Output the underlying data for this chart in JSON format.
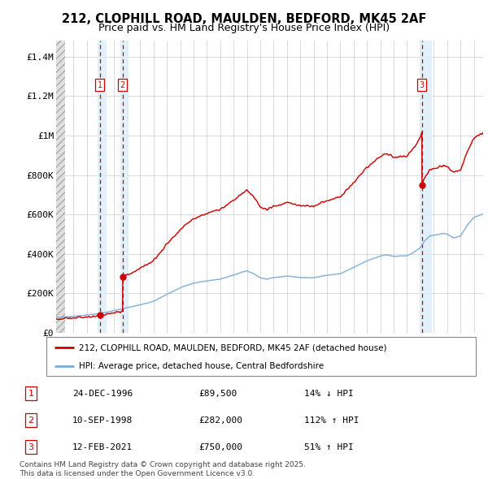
{
  "title": "212, CLOPHILL ROAD, MAULDEN, BEDFORD, MK45 2AF",
  "subtitle": "Price paid vs. HM Land Registry's House Price Index (HPI)",
  "ylabel_ticks": [
    "£0",
    "£200K",
    "£400K",
    "£600K",
    "£800K",
    "£1M",
    "£1.2M",
    "£1.4M"
  ],
  "ytick_vals": [
    0,
    200000,
    400000,
    600000,
    800000,
    1000000,
    1200000,
    1400000
  ],
  "ylim": [
    0,
    1480000
  ],
  "xlim_start": 1993.7,
  "xlim_end": 2025.7,
  "sale_dates": [
    1996.98,
    1998.69,
    2021.12
  ],
  "sale_prices": [
    89500,
    282000,
    750000
  ],
  "sale_labels": [
    "1",
    "2",
    "3"
  ],
  "legend_line1": "212, CLOPHILL ROAD, MAULDEN, BEDFORD, MK45 2AF (detached house)",
  "legend_line2": "HPI: Average price, detached house, Central Bedfordshire",
  "table_data": [
    [
      "1",
      "24-DEC-1996",
      "£89,500",
      "14% ↓ HPI"
    ],
    [
      "2",
      "10-SEP-1998",
      "£282,000",
      "112% ↑ HPI"
    ],
    [
      "3",
      "12-FEB-2021",
      "£750,000",
      "51% ↑ HPI"
    ]
  ],
  "footnote": "Contains HM Land Registry data © Crown copyright and database right 2025.\nThis data is licensed under the Open Government Licence v3.0.",
  "line_color_red": "#cc0000",
  "line_color_blue": "#7dadd4",
  "sale_vline_color": "#cc0000",
  "sale_band_color": "#dceef9",
  "hatch_color": "#c8c8c8"
}
